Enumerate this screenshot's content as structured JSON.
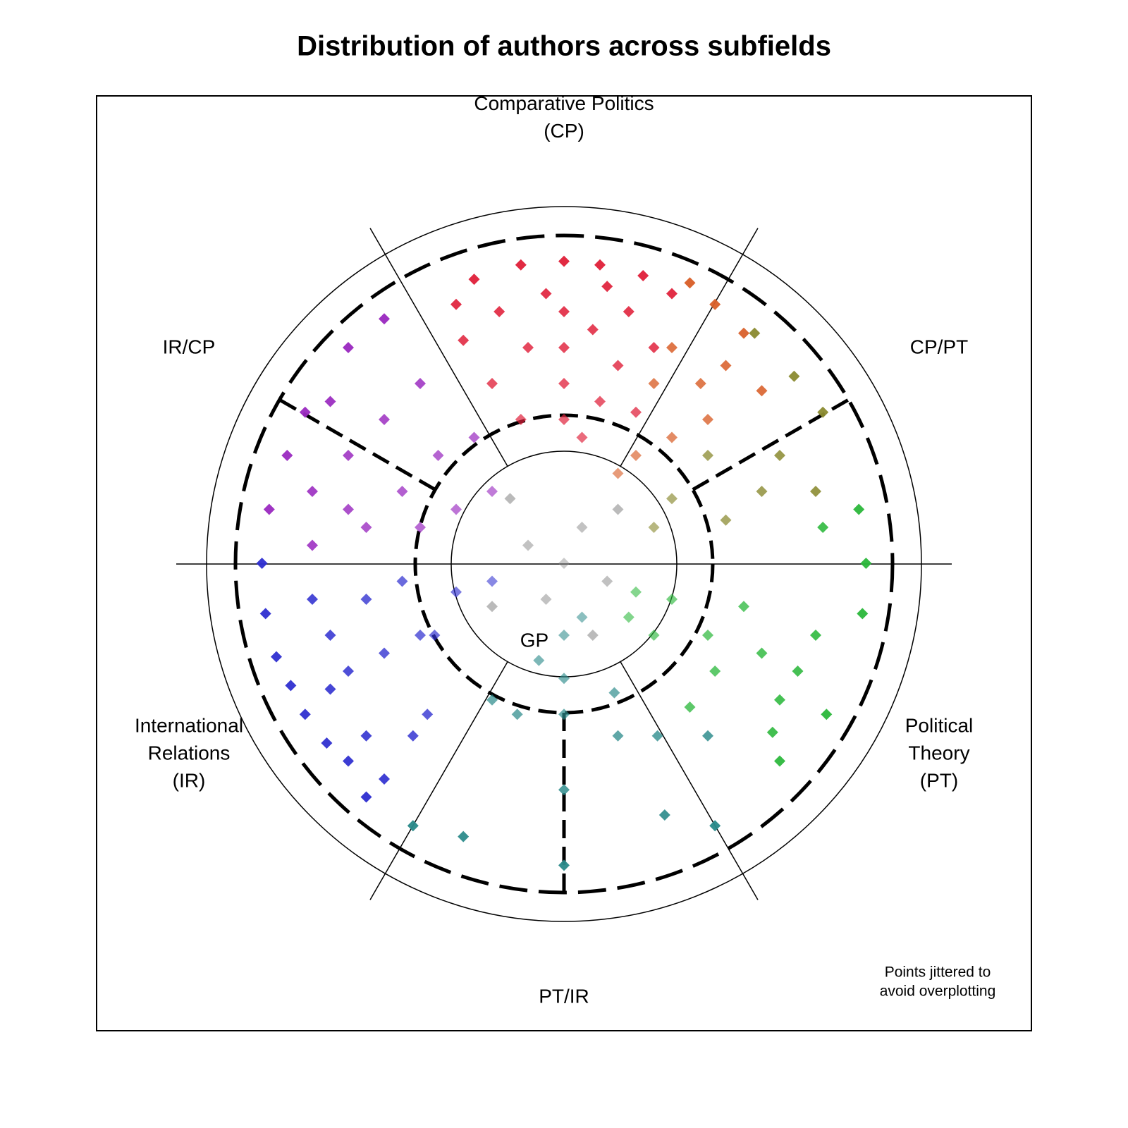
{
  "chart_data": {
    "type": "scatter",
    "title": "Distribution of authors across subfields",
    "region_labels": [
      [
        "Comparative Politics",
        "(CP)"
      ],
      [
        "CP/PT"
      ],
      [
        "Political",
        "Theory",
        "(PT)"
      ],
      [
        "PT/IR"
      ],
      [
        "International",
        "Relations",
        "(IR)"
      ],
      [
        "IR/CP"
      ],
      [
        "GP"
      ]
    ],
    "note": [
      "Points jittered to",
      "avoid overplotting"
    ],
    "xlim": [
      -1.3,
      1.3
    ],
    "ylim": [
      -1.3,
      1.3
    ],
    "series": [
      {
        "color": "#e0203a",
        "x": [
          0,
          0.1,
          -0.12,
          0.22,
          -0.25,
          0,
          0,
          0,
          0,
          0.08,
          -0.1,
          0.15,
          -0.2,
          0.1,
          -0.05,
          0.18,
          -0.18,
          0.25,
          -0.28,
          0.05,
          -0.12,
          0.2,
          -0.3,
          0.3,
          0.12
        ],
        "values": [
          0.84,
          0.83,
          0.83,
          0.8,
          0.79,
          0.7,
          0.6,
          0.5,
          0.4,
          0.65,
          0.6,
          0.55,
          0.5,
          0.45,
          0.75,
          0.7,
          0.7,
          0.6,
          0.62,
          0.35,
          0.4,
          0.42,
          0.72,
          0.75,
          0.77
        ]
      },
      {
        "color": "#d9602a",
        "x": [
          0.42,
          0.35,
          0.3,
          0.38,
          0.25,
          0.45,
          0.5,
          0.3,
          0.4,
          0.2,
          0.55,
          0.15
        ],
        "values": [
          0.72,
          0.78,
          0.6,
          0.5,
          0.5,
          0.55,
          0.64,
          0.35,
          0.4,
          0.3,
          0.48,
          0.25
        ]
      },
      {
        "color": "#8a8a30",
        "x": [
          0.72,
          0.53,
          0.64,
          0.4,
          0.6,
          0.55,
          0.3,
          0.45,
          0.25,
          0.7
        ],
        "values": [
          0.42,
          0.64,
          0.52,
          0.3,
          0.3,
          0.2,
          0.18,
          0.12,
          0.1,
          0.2
        ]
      },
      {
        "color": "#2cb83c",
        "x": [
          0.73,
          0.84,
          0.82,
          0.72,
          0.83,
          0.65,
          0.55,
          0.4,
          0.3,
          0.2,
          0.5,
          0.6,
          0.58,
          0.42,
          0.35,
          0.7,
          0.18,
          0.25,
          0.6
        ],
        "values": [
          -0.42,
          0,
          0.15,
          0.1,
          -0.14,
          -0.3,
          -0.25,
          -0.2,
          -0.1,
          -0.08,
          -0.12,
          -0.38,
          -0.47,
          -0.3,
          -0.4,
          -0.2,
          -0.15,
          -0.2,
          -0.55
        ]
      },
      {
        "color": "#2a8a8a",
        "x": [
          0,
          0,
          0,
          0,
          0.15,
          -0.13,
          0.28,
          0.42,
          0.26,
          -0.42,
          -0.28,
          0.14,
          -0.2,
          0,
          0.05,
          -0.07,
          0.4
        ],
        "values": [
          -0.84,
          -0.63,
          -0.42,
          -0.32,
          -0.48,
          -0.42,
          -0.7,
          -0.73,
          -0.48,
          -0.73,
          -0.76,
          -0.36,
          -0.38,
          -0.2,
          -0.15,
          -0.27,
          -0.48
        ]
      },
      {
        "color": "#3030d0",
        "x": [
          -0.72,
          -0.84,
          -0.83,
          -0.8,
          -0.76,
          -0.65,
          -0.55,
          -0.7,
          -0.6,
          -0.5,
          -0.4,
          -0.36,
          -0.65,
          -0.45,
          -0.3,
          -0.2,
          -0.66,
          -0.6,
          -0.55,
          -0.42,
          -0.38,
          -0.5,
          -0.55
        ],
        "values": [
          -0.42,
          0,
          -0.14,
          -0.26,
          -0.34,
          -0.2,
          -0.1,
          -0.1,
          -0.3,
          -0.25,
          -0.2,
          -0.2,
          -0.35,
          -0.05,
          -0.08,
          -0.05,
          -0.5,
          -0.55,
          -0.48,
          -0.48,
          -0.42,
          -0.6,
          -0.65
        ]
      },
      {
        "color": "#9a2ac0",
        "x": [
          -0.72,
          -0.6,
          -0.5,
          -0.77,
          -0.82,
          -0.7,
          -0.6,
          -0.5,
          -0.4,
          -0.35,
          -0.55,
          -0.45,
          -0.3,
          -0.65,
          -0.7,
          -0.25,
          -0.4,
          -0.2,
          -0.6
        ],
        "values": [
          0.42,
          0.6,
          0.68,
          0.3,
          0.15,
          0.2,
          0.3,
          0.4,
          0.5,
          0.3,
          0.1,
          0.2,
          0.15,
          0.45,
          0.05,
          0.35,
          0.1,
          0.2,
          0.15
        ]
      },
      {
        "color": "#8a8a8a",
        "x": [
          0,
          0.05,
          -0.1,
          0.12,
          -0.05,
          0.15,
          -0.15,
          0.08,
          -0.2
        ],
        "values": [
          0,
          0.1,
          0.05,
          -0.05,
          -0.1,
          0.15,
          0.18,
          -0.2,
          -0.12
        ]
      }
    ]
  }
}
